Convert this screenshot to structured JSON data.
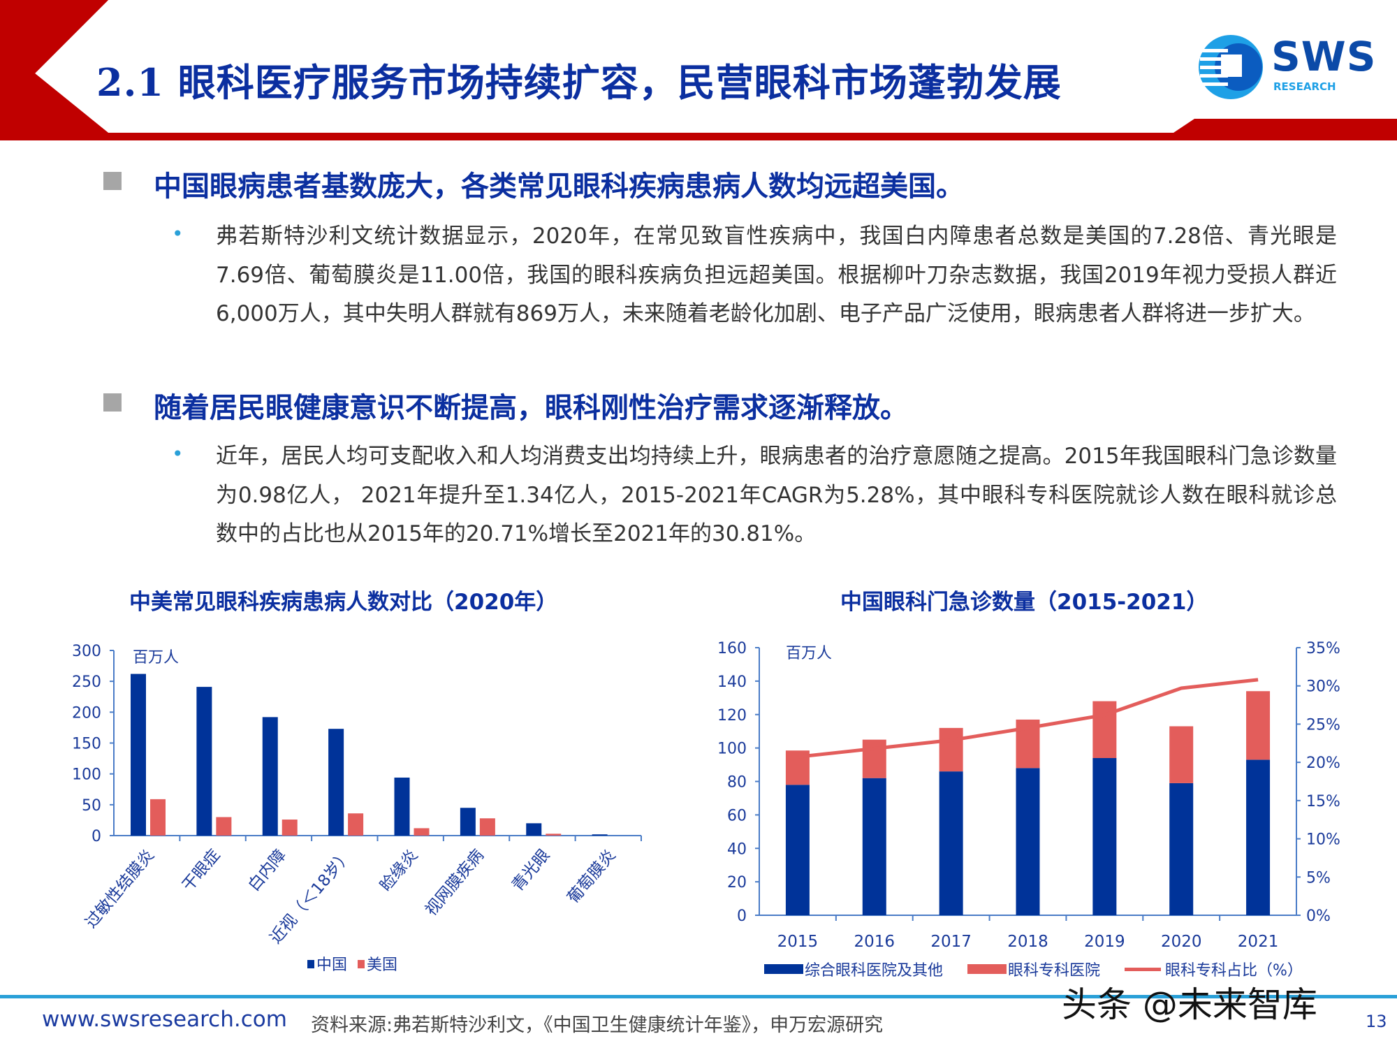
{
  "header": {
    "title": "2.1 眼科医疗服务市场持续扩容，民营眼科市场蓬勃发展",
    "logo": {
      "text": "SWS",
      "subtext": "RESEARCH"
    },
    "colors": {
      "band": "#c00000",
      "title": "#0b2fa0",
      "logo_blue": "#0b4aa8",
      "logo_cyan": "#1ea0e6"
    }
  },
  "sections": [
    {
      "heading": "中国眼病患者基数庞大，各类常见眼科疾病患病人数均远超美国。",
      "bullet": "弗若斯特沙利文统计数据显示，2020年，在常见致盲性疾病中，我国白内障患者总数是美国的7.28倍、青光眼是7.69倍、葡萄膜炎是11.00倍，我国的眼科疾病负担远超美国。根据柳叶刀杂志数据，我国2019年视力受损人群近6,000万人，其中失明人群就有869万人，未来随着老龄化加剧、电子产品广泛使用，眼病患者人群将进一步扩大。"
    },
    {
      "heading": "随着居民眼健康意识不断提高，眼科刚性治疗需求逐渐释放。",
      "bullet": "近年，居民人均可支配收入和人均消费支出均持续上升，眼病患者的治疗意愿随之提高。2015年我国眼科门急诊数量为0.98亿人， 2021年提升至1.34亿人，2015-2021年CAGR为5.28%，其中眼科专科医院就诊人数在眼科就诊总数中的占比也从2015年的20.71%增长至2021年的30.81%。"
    }
  ],
  "chart_data": [
    {
      "type": "bar",
      "title": "中美常见眼科疾病患病人数对比（2020年）",
      "ylabel": "百万人",
      "ylim": [
        0,
        300
      ],
      "yticks": [
        "0",
        "50",
        "100",
        "150",
        "200",
        "250",
        "300"
      ],
      "categories": [
        "过敏性结膜炎",
        "干眼症",
        "白内障",
        "近视（＜18岁）",
        "睑缘炎",
        "视网膜疾病",
        "青光眼",
        "葡萄膜炎"
      ],
      "series": [
        {
          "name": "中国",
          "color": "#003399",
          "values": [
            262,
            241,
            192,
            173,
            94,
            45,
            20,
            2
          ]
        },
        {
          "name": "美国",
          "color": "#e35d5b",
          "values": [
            59,
            30,
            26,
            36,
            12,
            28,
            3,
            0
          ]
        }
      ],
      "legend": "bottom",
      "grid": false
    },
    {
      "type": "bar",
      "stacked": true,
      "title": "中国眼科门急诊数量（2015-2021）",
      "ylabel": "百万人",
      "ylim": [
        0,
        160
      ],
      "yticks": [
        "0",
        "20",
        "40",
        "60",
        "80",
        "100",
        "120",
        "140",
        "160"
      ],
      "y2lim": [
        0,
        35
      ],
      "y2ticks": [
        "0%",
        "5%",
        "10%",
        "15%",
        "20%",
        "25%",
        "30%",
        "35%"
      ],
      "categories": [
        "2015",
        "2016",
        "2017",
        "2018",
        "2019",
        "2020",
        "2021"
      ],
      "series": [
        {
          "name": "综合眼科医院及其他",
          "kind": "bar",
          "color": "#003399",
          "values": [
            78,
            82,
            86,
            88,
            94,
            79,
            93
          ]
        },
        {
          "name": "眼科专科医院",
          "kind": "bar",
          "color": "#e35d5b",
          "values": [
            20.5,
            23,
            26,
            29,
            34,
            34,
            41
          ]
        },
        {
          "name": "眼科专科占比（%）",
          "kind": "line",
          "axis": "right",
          "color": "#e35d5b",
          "values": [
            20.71,
            21.8,
            22.9,
            24.5,
            26.2,
            29.7,
            30.81
          ]
        }
      ],
      "legend": "bottom",
      "grid": false
    }
  ],
  "footer": {
    "website": "www.swsresearch.com",
    "source": "资料来源:弗若斯特沙利文，《中国卫生健康统计年鉴》，申万宏源研究",
    "page": "13",
    "watermark": "头条 @未来智库"
  }
}
